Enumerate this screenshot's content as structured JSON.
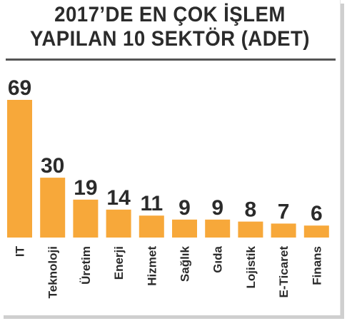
{
  "title_line1": "2017’DE EN ÇOK İŞLEM",
  "title_line2": "YAPILAN 10 SEKTÖR (ADET)",
  "colors": {
    "bar": "#F7A83A",
    "text": "#2b2b2b",
    "divider": "#555555"
  },
  "chart_data": {
    "type": "bar",
    "title": "2017’DE EN ÇOK İŞLEM YAPILAN 10 SEKTÖR (ADET)",
    "categories": [
      "IT",
      "Teknoloji",
      "Üretim",
      "Enerji",
      "Hizmet",
      "Sağlık",
      "Gıda",
      "Lojistik",
      "E-Ticaret",
      "Finans"
    ],
    "values": [
      69,
      30,
      19,
      14,
      11,
      9,
      9,
      8,
      7,
      6
    ],
    "data_labels": [
      "69",
      "30",
      "19",
      "14",
      "11",
      "9",
      "9",
      "8",
      "7",
      "6"
    ],
    "xlabel": "",
    "ylabel": "",
    "ylim": [
      0,
      69
    ],
    "grid": false,
    "legend": "none"
  }
}
